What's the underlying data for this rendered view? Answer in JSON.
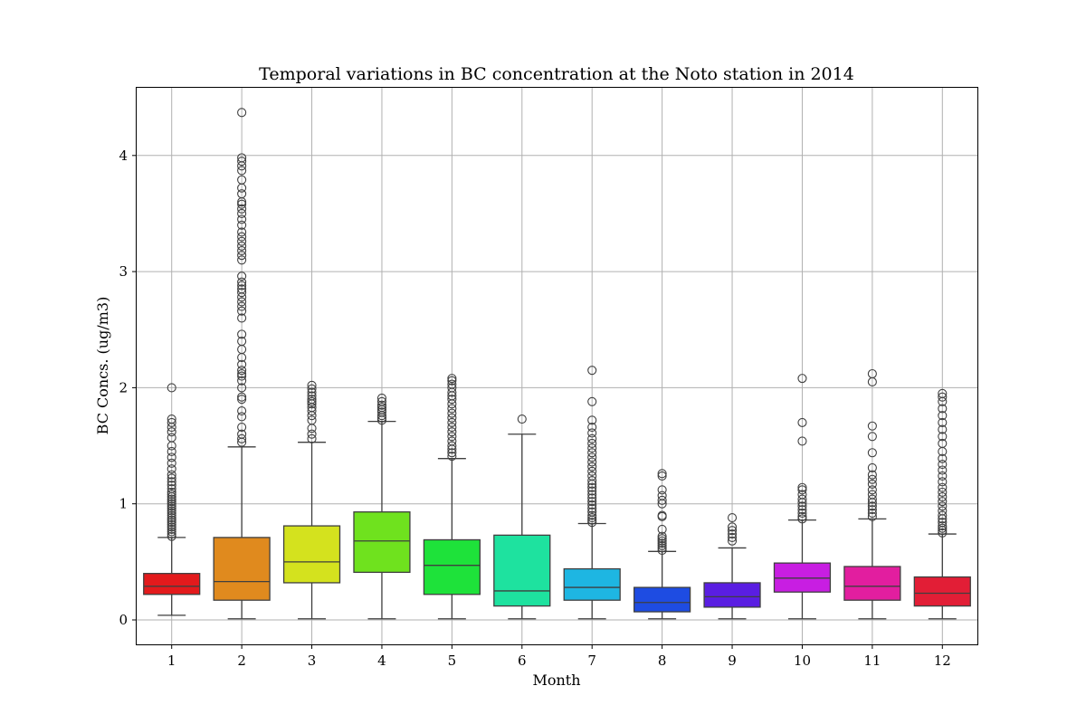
{
  "chart_data": {
    "type": "box",
    "title": "Temporal variations in BC concentration at the Noto station in 2014",
    "xlabel": "Month",
    "ylabel": "BC Concs. (ug/m3)",
    "categories": [
      "1",
      "2",
      "3",
      "4",
      "5",
      "6",
      "7",
      "8",
      "9",
      "10",
      "11",
      "12"
    ],
    "yticks": [
      "0",
      "1",
      "2",
      "3",
      "4"
    ],
    "ylim": [
      -0.21,
      4.6
    ],
    "grid": true,
    "boxes": [
      {
        "month": "1",
        "color": "#e31a1c",
        "whisker_low": 0.04,
        "q1": 0.22,
        "median": 0.29,
        "q3": 0.4,
        "whisker_high": 0.71,
        "outliers": [
          0.72,
          0.74,
          0.76,
          0.78,
          0.8,
          0.82,
          0.84,
          0.86,
          0.88,
          0.9,
          0.92,
          0.94,
          0.96,
          0.98,
          1.0,
          1.02,
          1.04,
          1.06,
          1.08,
          1.1,
          1.13,
          1.16,
          1.19,
          1.22,
          1.25,
          1.3,
          1.35,
          1.4,
          1.45,
          1.5,
          1.57,
          1.62,
          1.66,
          1.7,
          1.73,
          2.0
        ]
      },
      {
        "month": "2",
        "color": "#e08a1e",
        "whisker_low": 0.01,
        "q1": 0.17,
        "median": 0.33,
        "q3": 0.71,
        "whisker_high": 1.49,
        "outliers": [
          1.53,
          1.56,
          1.6,
          1.66,
          1.75,
          1.8,
          1.9,
          1.92,
          2.0,
          2.06,
          2.1,
          2.12,
          2.15,
          2.2,
          2.26,
          2.33,
          2.4,
          2.46,
          2.6,
          2.66,
          2.7,
          2.74,
          2.78,
          2.82,
          2.85,
          2.88,
          2.91,
          2.96,
          3.1,
          3.14,
          3.18,
          3.22,
          3.26,
          3.3,
          3.34,
          3.4,
          3.45,
          3.5,
          3.54,
          3.58,
          3.6,
          3.67,
          3.72,
          3.79,
          3.87,
          3.91,
          3.95,
          3.98,
          4.37
        ]
      },
      {
        "month": "3",
        "color": "#d4e21e",
        "whisker_low": 0.01,
        "q1": 0.32,
        "median": 0.5,
        "q3": 0.81,
        "whisker_high": 1.53,
        "outliers": [
          1.56,
          1.6,
          1.65,
          1.72,
          1.76,
          1.8,
          1.83,
          1.86,
          1.88,
          1.9,
          1.93,
          1.96,
          1.99,
          2.02
        ]
      },
      {
        "month": "4",
        "color": "#6fe21e",
        "whisker_low": 0.01,
        "q1": 0.41,
        "median": 0.68,
        "q3": 0.93,
        "whisker_high": 1.71,
        "outliers": [
          1.72,
          1.74,
          1.76,
          1.79,
          1.81,
          1.83,
          1.85,
          1.88,
          1.91
        ]
      },
      {
        "month": "5",
        "color": "#1ee23a",
        "whisker_low": 0.01,
        "q1": 0.22,
        "median": 0.47,
        "q3": 0.69,
        "whisker_high": 1.39,
        "outliers": [
          1.41,
          1.44,
          1.47,
          1.5,
          1.54,
          1.58,
          1.62,
          1.66,
          1.7,
          1.74,
          1.78,
          1.82,
          1.86,
          1.9,
          1.93,
          1.96,
          2.0,
          2.03,
          2.06,
          2.08
        ]
      },
      {
        "month": "6",
        "color": "#1ee29f",
        "whisker_low": 0.01,
        "q1": 0.12,
        "median": 0.25,
        "q3": 0.73,
        "whisker_high": 1.6,
        "outliers": [
          1.73
        ]
      },
      {
        "month": "7",
        "color": "#1eb6e2",
        "whisker_low": 0.01,
        "q1": 0.17,
        "median": 0.28,
        "q3": 0.44,
        "whisker_high": 0.83,
        "outliers": [
          0.84,
          0.86,
          0.88,
          0.9,
          0.93,
          0.96,
          0.99,
          1.02,
          1.05,
          1.08,
          1.11,
          1.14,
          1.17,
          1.2,
          1.24,
          1.28,
          1.32,
          1.36,
          1.4,
          1.44,
          1.48,
          1.52,
          1.56,
          1.61,
          1.66,
          1.72,
          1.88,
          2.15
        ]
      },
      {
        "month": "8",
        "color": "#1e4ce2",
        "whisker_low": 0.01,
        "q1": 0.07,
        "median": 0.15,
        "q3": 0.28,
        "whisker_high": 0.59,
        "outliers": [
          0.6,
          0.62,
          0.64,
          0.66,
          0.68,
          0.7,
          0.72,
          0.78,
          0.89,
          0.9,
          1.0,
          1.03,
          1.07,
          1.12,
          1.24,
          1.26
        ]
      },
      {
        "month": "9",
        "color": "#5a1ee2",
        "whisker_low": 0.01,
        "q1": 0.11,
        "median": 0.2,
        "q3": 0.32,
        "whisker_high": 0.62,
        "outliers": [
          0.68,
          0.71,
          0.74,
          0.77,
          0.8,
          0.88
        ]
      },
      {
        "month": "10",
        "color": "#c81ee2",
        "whisker_low": 0.01,
        "q1": 0.24,
        "median": 0.36,
        "q3": 0.49,
        "whisker_high": 0.86,
        "outliers": [
          0.87,
          0.89,
          0.92,
          0.95,
          0.98,
          1.01,
          1.04,
          1.08,
          1.12,
          1.14,
          1.54,
          1.7,
          2.08
        ]
      },
      {
        "month": "11",
        "color": "#e21e9f",
        "whisker_low": 0.01,
        "q1": 0.17,
        "median": 0.29,
        "q3": 0.46,
        "whisker_high": 0.87,
        "outliers": [
          0.89,
          0.92,
          0.95,
          0.98,
          1.01,
          1.04,
          1.08,
          1.12,
          1.17,
          1.21,
          1.25,
          1.31,
          1.44,
          1.58,
          1.67,
          2.05,
          2.12
        ]
      },
      {
        "month": "12",
        "color": "#e21e36",
        "whisker_low": 0.01,
        "q1": 0.12,
        "median": 0.23,
        "q3": 0.37,
        "whisker_high": 0.74,
        "outliers": [
          0.75,
          0.77,
          0.79,
          0.81,
          0.84,
          0.87,
          0.9,
          0.94,
          0.98,
          1.02,
          1.06,
          1.1,
          1.14,
          1.19,
          1.24,
          1.29,
          1.34,
          1.39,
          1.45,
          1.52,
          1.58,
          1.64,
          1.7,
          1.76,
          1.82,
          1.88,
          1.92,
          1.95
        ]
      }
    ]
  }
}
